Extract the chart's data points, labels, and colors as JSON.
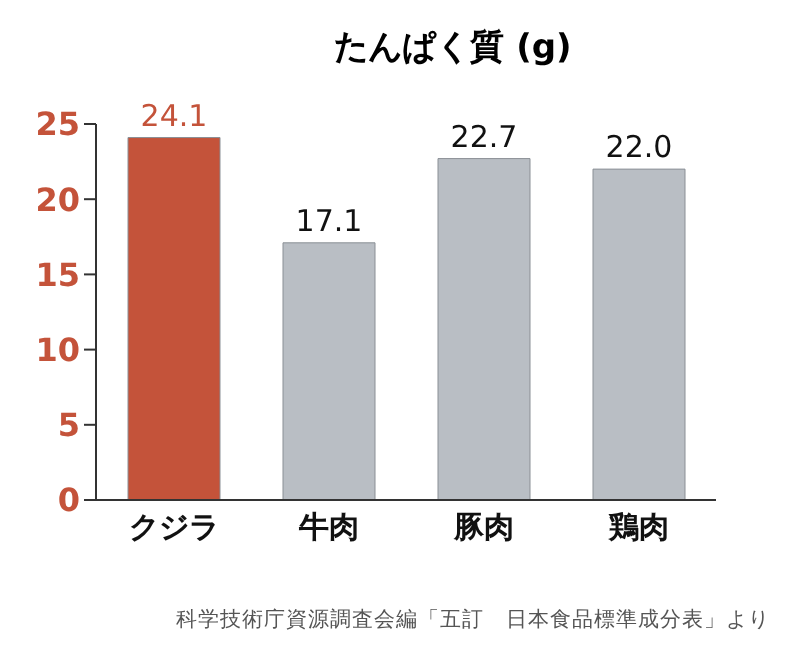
{
  "chart_data": {
    "type": "bar",
    "title": "たんぱく質 (g)",
    "categories": [
      "クジラ",
      "牛肉",
      "豚肉",
      "鶏肉"
    ],
    "values": [
      24.1,
      17.1,
      22.7,
      22.0
    ],
    "colors": [
      "#c4533a",
      "#b9bec4",
      "#b9bec4",
      "#b9bec4"
    ],
    "value_labels": [
      "24.1",
      "17.1",
      "22.7",
      "22.0"
    ],
    "ylim": [
      0,
      25
    ],
    "yticks": [
      0,
      5,
      10,
      15,
      20,
      25
    ],
    "grid": false,
    "annotations": [
      "科学技術庁資源調査会編「五訂　日本食品標準成分表」より"
    ]
  }
}
